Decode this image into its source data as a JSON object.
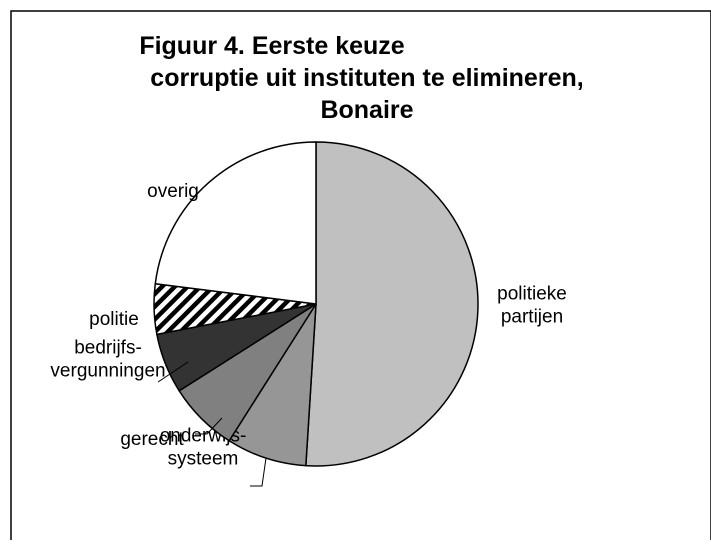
{
  "chart_data": {
    "type": "pie",
    "title": [
      "Figuur 4. Eerste keuze",
      "corruptie uit instituten te elimineren,",
      "Bonaire"
    ],
    "categories": [
      [
        "politieke",
        "partijen"
      ],
      [
        "onderwijs-",
        "systeem"
      ],
      [
        "gerecht"
      ],
      [
        "bedrijfs-",
        "vergunningen"
      ],
      [
        "politie"
      ],
      [
        "overig"
      ]
    ],
    "values": [
      51,
      8,
      7,
      6,
      5,
      23
    ],
    "colors": [
      "#c0c0c0",
      "#969696",
      "#808080",
      "#333333",
      "hatch",
      "#ffffff"
    ]
  }
}
